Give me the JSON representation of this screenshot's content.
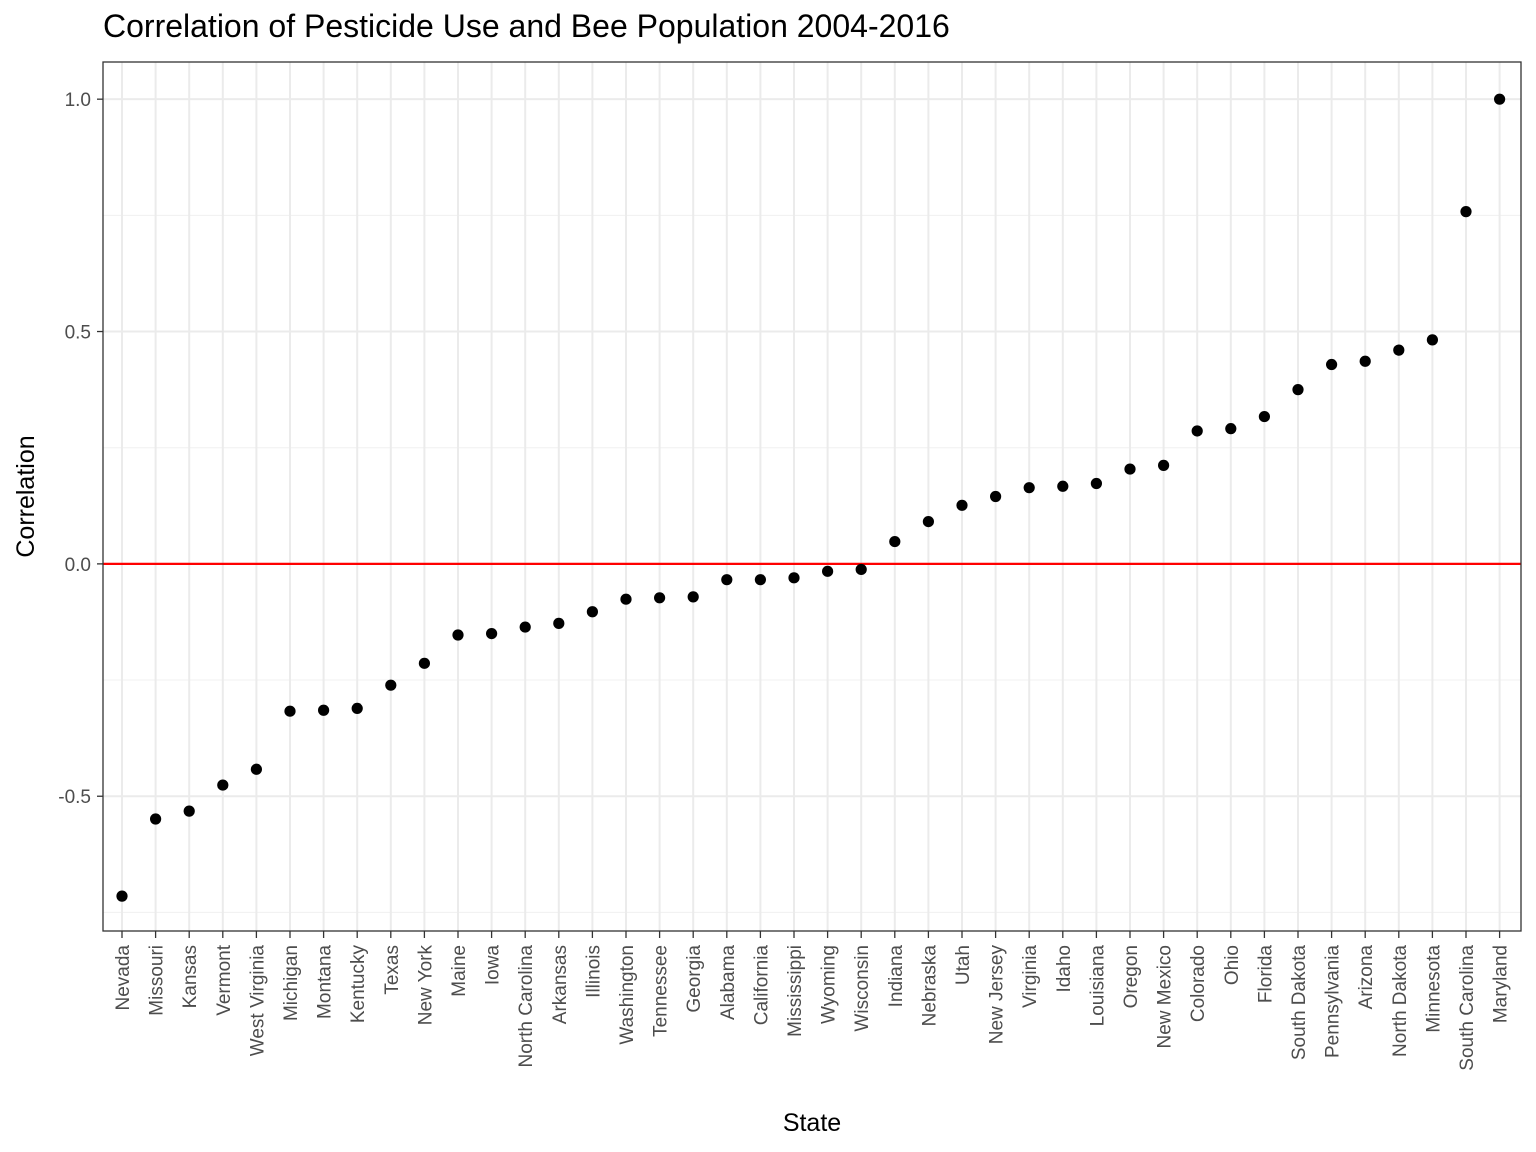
{
  "chart_data": {
    "type": "scatter",
    "title": "Correlation of Pesticide Use and Bee Population 2004-2016",
    "xlabel": "State",
    "ylabel": "Correlation",
    "ylim": [
      -0.79,
      1.08
    ],
    "y_ticks": [
      {
        "value": -0.5,
        "label": "-0.5"
      },
      {
        "value": 0.0,
        "label": "0.0"
      },
      {
        "value": 0.5,
        "label": "0.5"
      },
      {
        "value": 1.0,
        "label": "1.0"
      }
    ],
    "grid": true,
    "reference_line": {
      "y": 0.0,
      "color": "#ff0000"
    },
    "point_color": "#000000",
    "categories": [
      "Nevada",
      "Missouri",
      "Kansas",
      "Vermont",
      "West Virginia",
      "Michigan",
      "Montana",
      "Kentucky",
      "Texas",
      "New York",
      "Maine",
      "Iowa",
      "North Carolina",
      "Arkansas",
      "Illinois",
      "Washington",
      "Tennessee",
      "Georgia",
      "Alabama",
      "California",
      "Mississippi",
      "Wyoming",
      "Wisconsin",
      "Indiana",
      "Nebraska",
      "Utah",
      "New Jersey",
      "Virginia",
      "Idaho",
      "Louisiana",
      "Oregon",
      "New Mexico",
      "Colorado",
      "Ohio",
      "Florida",
      "South Dakota",
      "Pennsylvania",
      "Arizona",
      "North Dakota",
      "Minnesota",
      "South Carolina",
      "Maryland"
    ],
    "values": [
      -0.715,
      -0.549,
      -0.532,
      -0.476,
      -0.442,
      -0.317,
      -0.315,
      -0.311,
      -0.261,
      -0.214,
      -0.153,
      -0.15,
      -0.136,
      -0.128,
      -0.103,
      -0.076,
      -0.073,
      -0.071,
      -0.034,
      -0.034,
      -0.03,
      -0.016,
      -0.012,
      0.048,
      0.091,
      0.126,
      0.145,
      0.164,
      0.167,
      0.173,
      0.204,
      0.212,
      0.286,
      0.291,
      0.317,
      0.375,
      0.429,
      0.436,
      0.46,
      0.482,
      0.758,
      1.0
    ]
  }
}
